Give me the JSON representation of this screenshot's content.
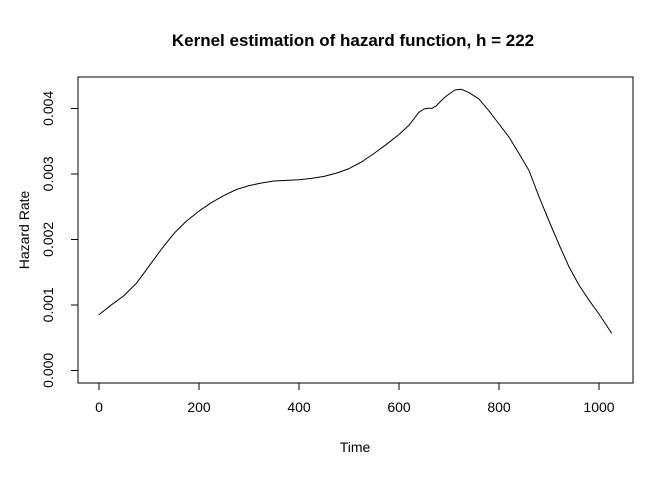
{
  "chart_data": {
    "type": "line",
    "title": "Kernel estimation of hazard function, h = 222",
    "xlabel": "Time",
    "ylabel": "Hazard Rate",
    "x": [
      0,
      25,
      50,
      75,
      100,
      125,
      150,
      175,
      200,
      225,
      250,
      275,
      300,
      325,
      350,
      375,
      400,
      425,
      450,
      475,
      500,
      525,
      550,
      575,
      600,
      620,
      640,
      650,
      658,
      666,
      675,
      685,
      695,
      712,
      725,
      740,
      760,
      780,
      800,
      820,
      840,
      860,
      880,
      900,
      920,
      940,
      960,
      980,
      1000,
      1025
    ],
    "y": [
      0.00085,
      0.001,
      0.00114,
      0.00133,
      0.00159,
      0.00185,
      0.00209,
      0.00228,
      0.00243,
      0.00256,
      0.00267,
      0.00276,
      0.00282,
      0.00286,
      0.00289,
      0.0029,
      0.00291,
      0.00293,
      0.00296,
      0.00301,
      0.00308,
      0.00318,
      0.00331,
      0.00345,
      0.0036,
      0.00374,
      0.00394,
      0.00399,
      0.004,
      0.004,
      0.00404,
      0.00412,
      0.00419,
      0.00428,
      0.00429,
      0.00424,
      0.00414,
      0.00396,
      0.00376,
      0.00356,
      0.00331,
      0.00305,
      0.00265,
      0.00228,
      0.00192,
      0.00158,
      0.0013,
      0.00107,
      0.00086,
      0.00057
    ],
    "xticks": [
      0,
      200,
      400,
      600,
      800,
      1000
    ],
    "xtick_labels": [
      "0",
      "200",
      "400",
      "600",
      "800",
      "1000"
    ],
    "yticks": [
      0,
      0.001,
      0.002,
      0.003,
      0.004
    ],
    "ytick_labels": [
      "0.000",
      "0.001",
      "0.002",
      "0.003",
      "0.004"
    ],
    "xlim": [
      -42,
      1068
    ],
    "ylim": [
      -0.000194,
      0.004478
    ],
    "grid": false,
    "legend": false,
    "line_color": "#000000",
    "background": "#ffffff"
  }
}
